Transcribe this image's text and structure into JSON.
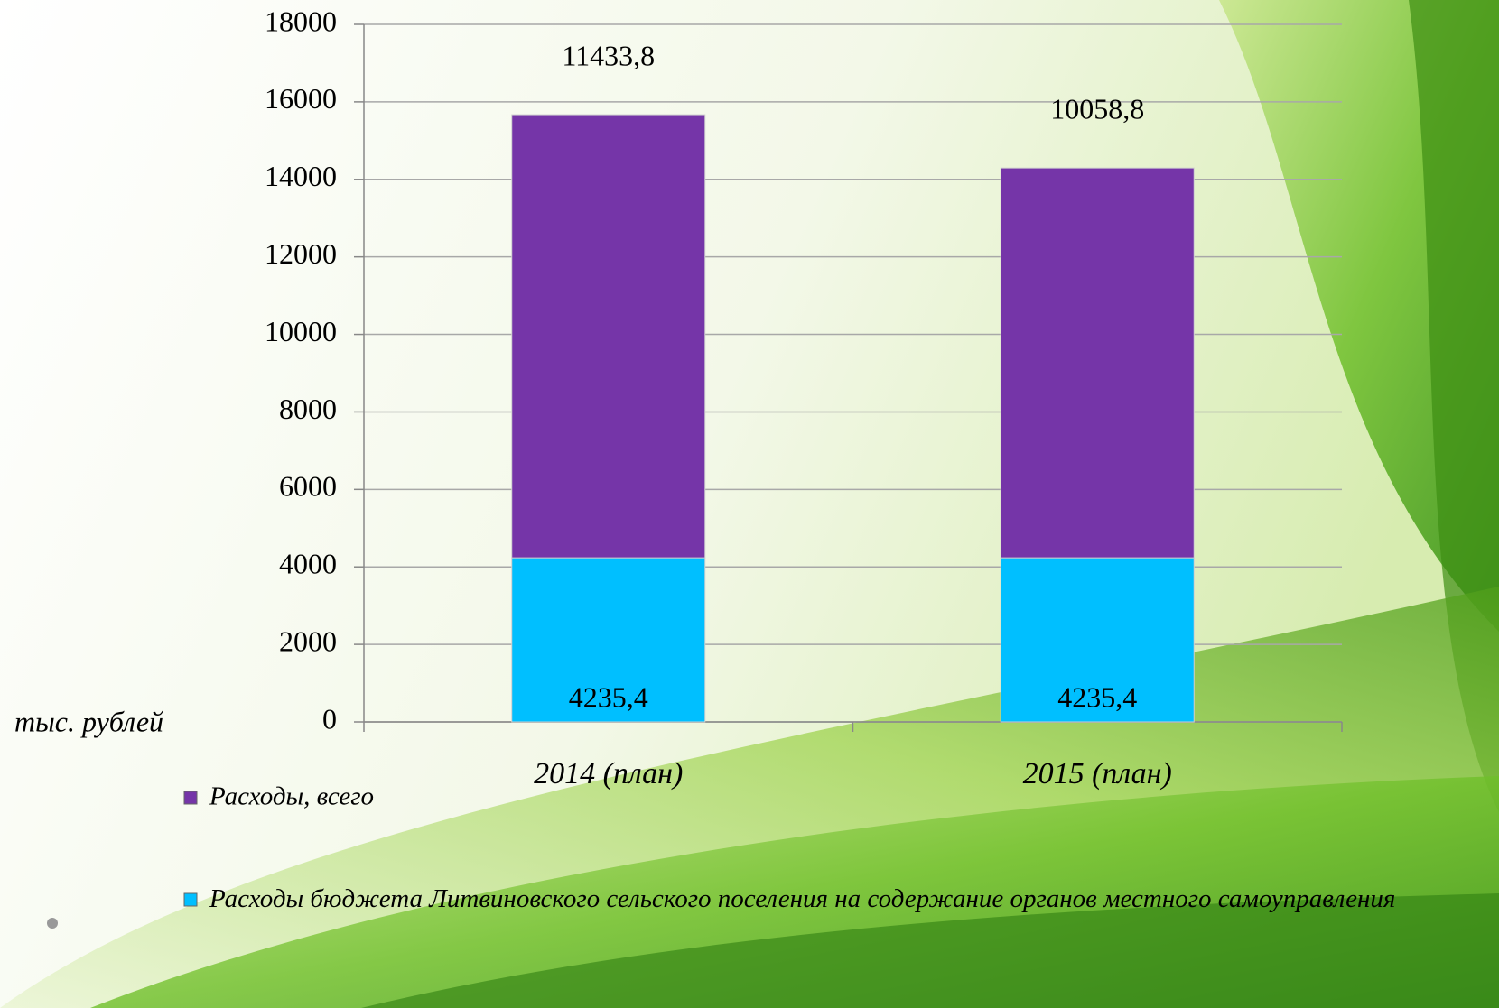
{
  "chart_data": {
    "type": "stacked-bar",
    "y_label": "тыс. рублей",
    "categories": [
      "2014 (план)",
      "2015 (план)"
    ],
    "series": [
      {
        "name": "Расходы бюджета Литвиновского сельского поселения на содержание органов местного самоуправления",
        "color": "#00bfff",
        "values": [
          4235.4,
          4235.4
        ],
        "value_labels": [
          "4235,4",
          "4235,4"
        ]
      },
      {
        "name": "Расходы, всего",
        "color": "#7535a8",
        "values": [
          11433.8,
          10058.8
        ],
        "value_labels": [
          "11433,8",
          "10058,8"
        ]
      }
    ],
    "ylim": [
      0,
      18000
    ],
    "yticks": [
      0,
      2000,
      4000,
      6000,
      8000,
      10000,
      12000,
      14000,
      16000,
      18000
    ],
    "grid": true
  }
}
